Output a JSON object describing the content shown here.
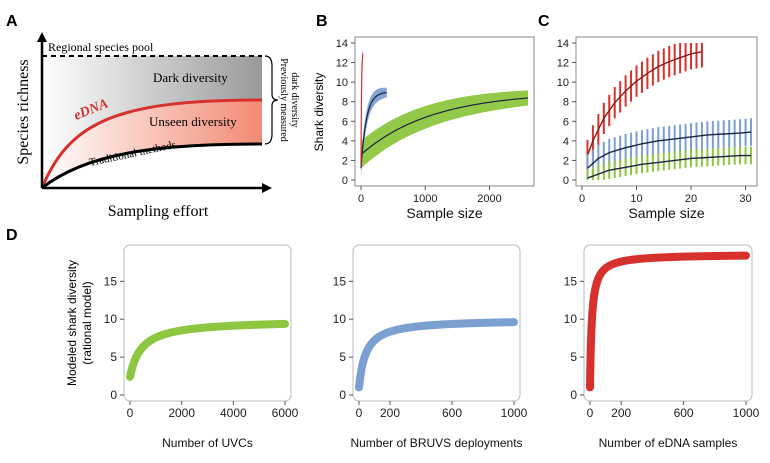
{
  "panels": {
    "A": {
      "letter": "A",
      "top_label": "Regional species pool",
      "dark_label": "Dark diversity",
      "unseen_label": "Unseen diversity",
      "edna_label": "eDNA",
      "traditional_label": "Traditional methods",
      "brace_label_1": "Previously measured",
      "brace_label_2": "dark diversity",
      "ylabel": "Species richness",
      "xlabel": "Sampling effort"
    },
    "B": {
      "letter": "B"
    },
    "C": {
      "letter": "C"
    },
    "D": {
      "letter": "D"
    }
  },
  "colors": {
    "uvc": "#8dc63f",
    "bruvs": "#7b9fd1",
    "edna": "#d7312e",
    "mean": "#1c2340",
    "gray_fill": "#a9a9a9",
    "red_fill": "#f09a86"
  },
  "chart_data": [
    {
      "id": "B",
      "type": "line",
      "ylabel": "Shark diversity",
      "xlabel": "Sample size",
      "xticks": [
        0,
        1000,
        2000
      ],
      "yticks": [
        0,
        2,
        4,
        6,
        8,
        10,
        12,
        14
      ],
      "xlim": [
        0,
        2600
      ],
      "ylim": [
        0,
        14
      ],
      "series": [
        {
          "color": "uvc",
          "x_max": 2600,
          "asymptote": 9.0,
          "k": 0.0009,
          "y0": 2.6
        },
        {
          "color": "bruvs",
          "x_max": 400,
          "asymptote": 9.0,
          "k": 0.012,
          "y0": 1.2
        },
        {
          "color": "edna",
          "x_max": 30,
          "asymptote": 13.2,
          "k": 0.12,
          "y0": 1.5
        }
      ]
    },
    {
      "id": "C",
      "type": "line",
      "xlabel": "Sample size",
      "xticks": [
        0,
        10,
        20,
        30
      ],
      "yticks": [
        0,
        2,
        4,
        6,
        8,
        10,
        12,
        14
      ],
      "xlim": [
        0,
        31
      ],
      "ylim": [
        0,
        14
      ],
      "series": [
        {
          "color": "edna",
          "x": [
            1,
            2,
            4,
            6,
            8,
            10,
            12,
            14,
            16,
            18,
            20,
            22
          ],
          "y": [
            2.5,
            4.0,
            6.3,
            7.9,
            9.1,
            10.1,
            10.9,
            11.6,
            12.1,
            12.5,
            12.9,
            13.1
          ],
          "err": 1.6
        },
        {
          "color": "bruvs",
          "x": [
            1,
            3,
            5,
            8,
            11,
            14,
            17,
            20,
            23,
            26,
            29,
            31
          ],
          "y": [
            1.2,
            2.2,
            2.8,
            3.3,
            3.7,
            4.0,
            4.2,
            4.4,
            4.6,
            4.7,
            4.8,
            4.9
          ],
          "err": 1.4
        },
        {
          "color": "uvc",
          "x": [
            1,
            3,
            5,
            8,
            11,
            14,
            17,
            20,
            23,
            26,
            29,
            31
          ],
          "y": [
            0.2,
            0.6,
            1.0,
            1.3,
            1.6,
            1.8,
            2.0,
            2.2,
            2.3,
            2.4,
            2.5,
            2.5
          ],
          "err": 0.9
        }
      ]
    },
    {
      "id": "D1",
      "type": "line",
      "ylabel": "Modeled shark diversity",
      "ylabel2": "(rational model)",
      "xlabel": "Number of UVCs",
      "xticks": [
        0,
        2000,
        4000,
        6000
      ],
      "yticks": [
        0,
        5,
        10,
        15
      ],
      "xlim": [
        0,
        6000
      ],
      "ylim": [
        0,
        19
      ],
      "series": [
        {
          "color": "uvc",
          "x_max": 6000,
          "asymptote": 9.9,
          "half": 450,
          "y0": 2.4
        }
      ]
    },
    {
      "id": "D2",
      "type": "line",
      "xlabel": "Number of BRUVS deployments",
      "xticks": [
        0,
        200,
        600,
        1000
      ],
      "yticks": [
        0,
        5,
        10,
        15
      ],
      "xlim": [
        0,
        1000
      ],
      "ylim": [
        0,
        19
      ],
      "series": [
        {
          "color": "bruvs",
          "x_max": 1000,
          "asymptote": 10.0,
          "half": 45,
          "y0": 1.0
        }
      ]
    },
    {
      "id": "D3",
      "type": "line",
      "xlabel": "Number of eDNA samples",
      "xticks": [
        0,
        200,
        600,
        1000
      ],
      "yticks": [
        0,
        5,
        10,
        15
      ],
      "xlim": [
        0,
        1000
      ],
      "ylim": [
        0,
        19
      ],
      "series": [
        {
          "color": "edna",
          "x_max": 1000,
          "asymptote": 18.6,
          "half": 12,
          "y0": 1.0
        }
      ]
    }
  ]
}
